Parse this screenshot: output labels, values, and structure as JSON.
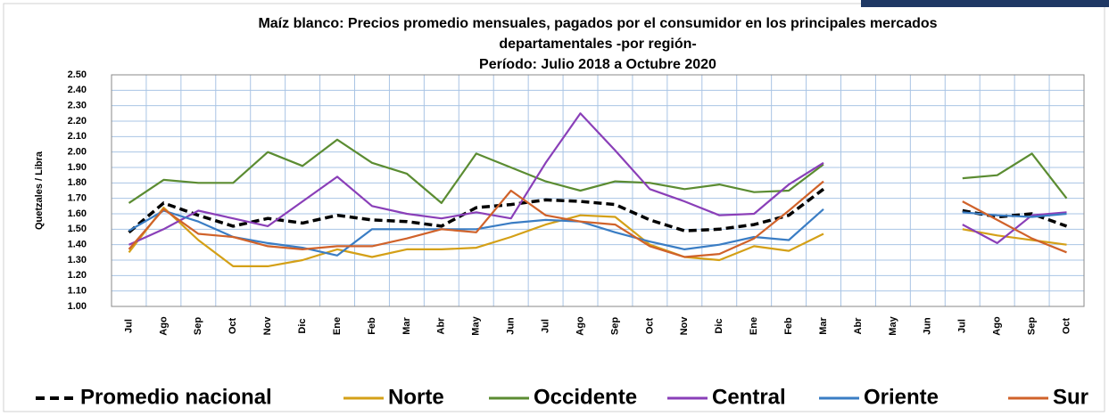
{
  "chart_data": {
    "type": "line",
    "title": [
      "Maíz blanco: Precios promedio mensuales, pagados por el consumidor en los principales mercados",
      "departamentales -por región-",
      "Período: Julio 2018 a Octubre 2020"
    ],
    "y_label": "Quetzales / Libra",
    "categories": [
      "Jul",
      "Ago",
      "Sep",
      "Oct",
      "Nov",
      "Dic",
      "Ene",
      "Feb",
      "Mar",
      "Abr",
      "May",
      "Jun",
      "Jul",
      "Ago",
      "Sep",
      "Oct",
      "Nov",
      "Dic",
      "Ene",
      "Feb",
      "Mar",
      "Abr",
      "May",
      "Jun",
      "Jul",
      "Ago",
      "Sep",
      "Oct"
    ],
    "series": [
      {
        "name": "Promedio nacional",
        "color": "#000000",
        "dashed": true,
        "values": [
          1.48,
          1.67,
          1.59,
          1.52,
          1.57,
          1.54,
          1.59,
          1.56,
          1.55,
          1.52,
          1.64,
          1.66,
          1.69,
          1.68,
          1.66,
          1.56,
          1.49,
          1.5,
          1.53,
          1.59,
          1.76,
          null,
          null,
          null,
          1.62,
          1.58,
          1.6,
          1.52
        ]
      },
      {
        "name": "Norte",
        "color": "#d4a017",
        "values": [
          1.35,
          1.64,
          1.43,
          1.26,
          1.26,
          1.3,
          1.37,
          1.32,
          1.37,
          1.37,
          1.38,
          1.45,
          1.53,
          1.59,
          1.58,
          1.4,
          1.32,
          1.3,
          1.39,
          1.36,
          1.47,
          null,
          null,
          null,
          1.5,
          1.46,
          1.43,
          1.4
        ]
      },
      {
        "name": "Occidente",
        "color": "#5b8c32",
        "values": [
          1.67,
          1.82,
          1.8,
          1.8,
          2.0,
          1.91,
          2.08,
          1.93,
          1.86,
          1.67,
          1.99,
          1.9,
          1.81,
          1.75,
          1.81,
          1.8,
          1.76,
          1.79,
          1.74,
          1.75,
          1.92,
          null,
          null,
          null,
          1.83,
          1.85,
          1.99,
          1.7
        ]
      },
      {
        "name": "Central",
        "color": "#8a3fb8",
        "values": [
          1.4,
          1.5,
          1.62,
          1.57,
          1.52,
          1.68,
          1.84,
          1.65,
          1.6,
          1.57,
          1.61,
          1.57,
          1.93,
          2.25,
          2.01,
          1.76,
          1.68,
          1.59,
          1.6,
          1.79,
          1.93,
          null,
          null,
          null,
          1.53,
          1.41,
          1.59,
          1.61
        ]
      },
      {
        "name": "Oriente",
        "color": "#3a7dc4",
        "values": [
          1.49,
          1.62,
          1.55,
          1.45,
          1.41,
          1.38,
          1.33,
          1.5,
          1.5,
          1.5,
          1.5,
          1.54,
          1.56,
          1.55,
          1.48,
          1.42,
          1.37,
          1.4,
          1.45,
          1.43,
          1.63,
          null,
          null,
          null,
          1.61,
          1.59,
          1.58,
          1.6
        ]
      },
      {
        "name": "Sur",
        "color": "#d0622a",
        "values": [
          1.37,
          1.63,
          1.47,
          1.45,
          1.39,
          1.37,
          1.39,
          1.39,
          1.44,
          1.5,
          1.48,
          1.75,
          1.59,
          1.55,
          1.53,
          1.39,
          1.32,
          1.34,
          1.44,
          1.62,
          1.81,
          null,
          null,
          null,
          1.68,
          1.56,
          1.44,
          1.35
        ]
      }
    ],
    "ylim": [
      1.0,
      2.5
    ],
    "yticks": [
      {
        "value": 1.0,
        "label": "1.00"
      },
      {
        "value": 1.1,
        "label": "1.10"
      },
      {
        "value": 1.2,
        "label": "1.20"
      },
      {
        "value": 1.3,
        "label": "1.30"
      },
      {
        "value": 1.4,
        "label": "1.40"
      },
      {
        "value": 1.5,
        "label": "1.50"
      },
      {
        "value": 1.6,
        "label": "1.60"
      },
      {
        "value": 1.7,
        "label": "1.70"
      },
      {
        "value": 1.8,
        "label": "1.80"
      },
      {
        "value": 1.9,
        "label": "1.90"
      },
      {
        "value": 2.0,
        "label": "2.00"
      },
      {
        "value": 2.1,
        "label": "2.10"
      },
      {
        "value": 2.2,
        "label": "2.20"
      },
      {
        "value": 2.3,
        "label": "2.30"
      },
      {
        "value": 2.4,
        "label": "2.40"
      },
      {
        "value": 2.5,
        "label": "2.50"
      }
    ],
    "grid": true,
    "legend": "bottom"
  }
}
